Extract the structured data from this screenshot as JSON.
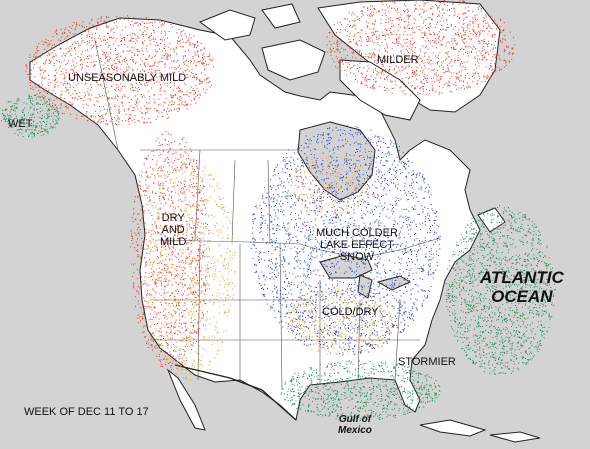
{
  "footer": {
    "week": "WEEK OF DEC 11 TO 17"
  },
  "labels": {
    "unseasonably_mild": "UNSEASONABLY MILD",
    "milder": "MILDER",
    "wet": "WET",
    "dry_and_mild": [
      "DRY",
      "AND",
      "MILD"
    ],
    "much_colder": [
      "MUCH COLDER",
      "LAKE EFFECT",
      "SNOW"
    ],
    "cold_dry": "COLD/DRY",
    "stormier": "STORMIER"
  },
  "water": {
    "atlantic": [
      "ATLANTIC",
      "OCEAN"
    ],
    "gulf": [
      "Gulf of",
      "Mexico"
    ]
  },
  "colors": {
    "mild_red": "#e8321a",
    "dry_orange": "#e89a1a",
    "cold_blue": "#1f3fd6",
    "wet_green": "#1a8c4a",
    "land": "#ffffff",
    "water": "#d3d3d3"
  }
}
